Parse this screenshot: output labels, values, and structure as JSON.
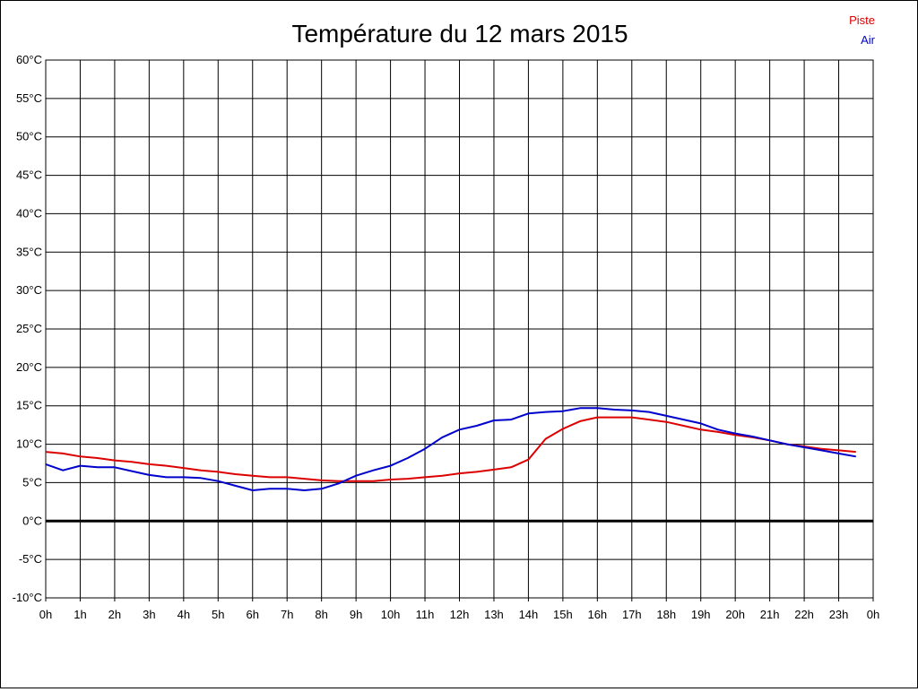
{
  "chart_data": {
    "type": "line",
    "title": "Température du 12 mars 2015",
    "ylim": [
      -10,
      60
    ],
    "y_ticks": [
      {
        "value": 60,
        "label": "60°C"
      },
      {
        "value": 55,
        "label": "55°C"
      },
      {
        "value": 50,
        "label": "50°C"
      },
      {
        "value": 45,
        "label": "45°C"
      },
      {
        "value": 40,
        "label": "40°C"
      },
      {
        "value": 35,
        "label": "35°C"
      },
      {
        "value": 30,
        "label": "30°C"
      },
      {
        "value": 25,
        "label": "25°C"
      },
      {
        "value": 20,
        "label": "20°C"
      },
      {
        "value": 15,
        "label": "15°C"
      },
      {
        "value": 10,
        "label": "10°C"
      },
      {
        "value": 5,
        "label": "5°C"
      },
      {
        "value": 0,
        "label": "0°C"
      },
      {
        "value": -5,
        "label": "-5°C"
      },
      {
        "value": -10,
        "label": "-10°C"
      }
    ],
    "x_ticks": [
      {
        "value": 0,
        "label": "0h"
      },
      {
        "value": 1,
        "label": "1h"
      },
      {
        "value": 2,
        "label": "2h"
      },
      {
        "value": 3,
        "label": "3h"
      },
      {
        "value": 4,
        "label": "4h"
      },
      {
        "value": 5,
        "label": "5h"
      },
      {
        "value": 6,
        "label": "6h"
      },
      {
        "value": 7,
        "label": "7h"
      },
      {
        "value": 8,
        "label": "8h"
      },
      {
        "value": 9,
        "label": "9h"
      },
      {
        "value": 10,
        "label": "10h"
      },
      {
        "value": 11,
        "label": "11h"
      },
      {
        "value": 12,
        "label": "12h"
      },
      {
        "value": 13,
        "label": "13h"
      },
      {
        "value": 14,
        "label": "14h"
      },
      {
        "value": 15,
        "label": "15h"
      },
      {
        "value": 16,
        "label": "16h"
      },
      {
        "value": 17,
        "label": "17h"
      },
      {
        "value": 18,
        "label": "18h"
      },
      {
        "value": 19,
        "label": "19h"
      },
      {
        "value": 20,
        "label": "20h"
      },
      {
        "value": 21,
        "label": "21h"
      },
      {
        "value": 22,
        "label": "22h"
      },
      {
        "value": 23,
        "label": "23h"
      },
      {
        "value": 24,
        "label": "0h"
      }
    ],
    "xlim": [
      0,
      24
    ],
    "grid": true,
    "legend_position": "top-right",
    "x": [
      0,
      0.5,
      1,
      1.5,
      2,
      2.5,
      3,
      3.5,
      4,
      4.5,
      5,
      5.5,
      6,
      6.5,
      7,
      7.5,
      8,
      8.5,
      9,
      9.5,
      10,
      10.5,
      11,
      11.5,
      12,
      12.5,
      13,
      13.5,
      14,
      14.5,
      15,
      15.5,
      16,
      16.5,
      17,
      17.5,
      18,
      18.5,
      19,
      19.5,
      20,
      20.5,
      21,
      21.5,
      22,
      22.5,
      23,
      23.5
    ],
    "series": [
      {
        "name": "Piste",
        "color": "#dd0000",
        "values": [
          9.0,
          8.8,
          8.4,
          8.2,
          7.9,
          7.7,
          7.4,
          7.2,
          6.9,
          6.6,
          6.4,
          6.1,
          5.9,
          5.7,
          5.7,
          5.5,
          5.3,
          5.2,
          5.2,
          5.2,
          5.4,
          5.5,
          5.7,
          5.9,
          6.2,
          6.4,
          6.7,
          7.0,
          8.0,
          10.7,
          12.0,
          13.0,
          13.5,
          13.5,
          13.5,
          13.2,
          12.9,
          12.4,
          11.9,
          11.6,
          11.2,
          10.9,
          10.5,
          10.0,
          9.7,
          9.4,
          9.2,
          9.0
        ]
      },
      {
        "name": "Air",
        "color": "#0000cc",
        "values": [
          7.4,
          6.6,
          7.2,
          7.0,
          7.0,
          6.5,
          6.0,
          5.7,
          5.7,
          5.6,
          5.2,
          4.6,
          4.0,
          4.2,
          4.2,
          4.0,
          4.2,
          4.9,
          5.9,
          6.6,
          7.2,
          8.2,
          9.4,
          10.9,
          11.9,
          12.4,
          13.1,
          13.2,
          14.0,
          14.2,
          14.3,
          14.7,
          14.7,
          14.5,
          14.4,
          14.2,
          13.7,
          13.2,
          12.7,
          11.9,
          11.4,
          11.0,
          10.5,
          10.0,
          9.6,
          9.2,
          8.8,
          8.4
        ]
      }
    ]
  }
}
